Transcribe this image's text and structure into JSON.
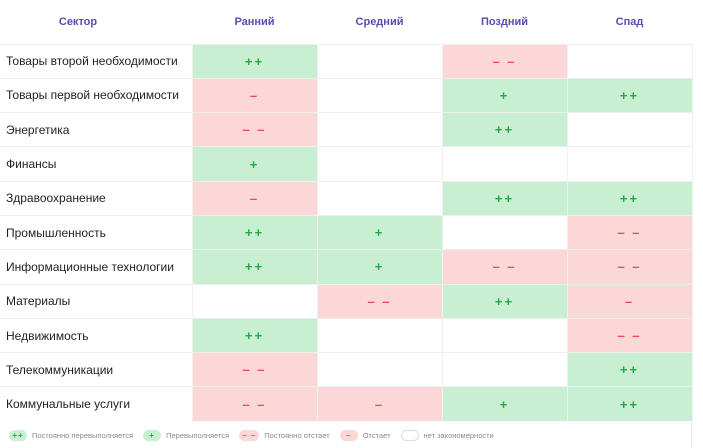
{
  "table": {
    "sector_header": "Сектор",
    "phases": [
      "Ранний",
      "Средний",
      "Поздний",
      "Спад"
    ],
    "rows": [
      {
        "name": "Товары второй необходимости",
        "cells": [
          {
            "status": "pp",
            "symbol": "++"
          },
          {
            "status": "n",
            "symbol": ""
          },
          {
            "status": "mm",
            "symbol": "– –"
          },
          {
            "status": "n",
            "symbol": ""
          }
        ]
      },
      {
        "name": "Товары первой необходимости",
        "cells": [
          {
            "status": "m",
            "symbol": "–"
          },
          {
            "status": "n",
            "symbol": ""
          },
          {
            "status": "p",
            "symbol": "+"
          },
          {
            "status": "pp",
            "symbol": "++"
          }
        ]
      },
      {
        "name": "Энергетика",
        "cells": [
          {
            "status": "mm",
            "symbol": "– –"
          },
          {
            "status": "n",
            "symbol": ""
          },
          {
            "status": "pp",
            "symbol": "++"
          },
          {
            "status": "n",
            "symbol": ""
          }
        ]
      },
      {
        "name": "Финансы",
        "cells": [
          {
            "status": "p",
            "symbol": "+"
          },
          {
            "status": "n",
            "symbol": ""
          },
          {
            "status": "n",
            "symbol": ""
          },
          {
            "status": "n",
            "symbol": ""
          }
        ]
      },
      {
        "name": "Здравоохранение",
        "cells": [
          {
            "status": "m",
            "symbol": "–"
          },
          {
            "status": "n",
            "symbol": ""
          },
          {
            "status": "pp",
            "symbol": "++"
          },
          {
            "status": "pp",
            "symbol": "++"
          }
        ]
      },
      {
        "name": "Промышленность",
        "cells": [
          {
            "status": "pp",
            "symbol": "++"
          },
          {
            "status": "p",
            "symbol": "+"
          },
          {
            "status": "n",
            "symbol": ""
          },
          {
            "status": "mm",
            "symbol": "– –"
          }
        ]
      },
      {
        "name": "Информационные технологии",
        "cells": [
          {
            "status": "pp",
            "symbol": "++"
          },
          {
            "status": "p",
            "symbol": "+"
          },
          {
            "status": "mm",
            "symbol": "– –"
          },
          {
            "status": "mm",
            "symbol": "– –"
          }
        ]
      },
      {
        "name": "Материалы",
        "cells": [
          {
            "status": "n",
            "symbol": ""
          },
          {
            "status": "mm",
            "symbol": "– –"
          },
          {
            "status": "pp",
            "symbol": "++"
          },
          {
            "status": "m",
            "symbol": "–"
          }
        ]
      },
      {
        "name": "Недвижимость",
        "cells": [
          {
            "status": "pp",
            "symbol": "++"
          },
          {
            "status": "n",
            "symbol": ""
          },
          {
            "status": "n",
            "symbol": ""
          },
          {
            "status": "mm",
            "symbol": "– –"
          }
        ]
      },
      {
        "name": "Телекоммуникации",
        "cells": [
          {
            "status": "mm",
            "symbol": "– –"
          },
          {
            "status": "n",
            "symbol": ""
          },
          {
            "status": "n",
            "symbol": ""
          },
          {
            "status": "pp",
            "symbol": "++"
          }
        ]
      },
      {
        "name": "Коммунальные услуги",
        "cells": [
          {
            "status": "mm",
            "symbol": "– –"
          },
          {
            "status": "m",
            "symbol": "–"
          },
          {
            "status": "p",
            "symbol": "+"
          },
          {
            "status": "pp",
            "symbol": "++"
          }
        ]
      }
    ]
  },
  "legend": [
    {
      "status": "pp",
      "symbol": "++",
      "label": "Постоянно перевыполняется"
    },
    {
      "status": "p",
      "symbol": "+",
      "label": "Перевыполняется"
    },
    {
      "status": "mm",
      "symbol": "– –",
      "label": "Постоянно отстает"
    },
    {
      "status": "m",
      "symbol": "–",
      "label": "Отстает"
    },
    {
      "status": "n",
      "symbol": "",
      "label": "нет закономерности"
    }
  ],
  "colors": {
    "header_text": "#5b4bb5",
    "positive_bg": "#c9efd3",
    "positive_text": "#28a745",
    "negative_bg": "#fbd7d7",
    "negative_text": "#ea4b4b",
    "neutral_bg": "#ffffff"
  }
}
